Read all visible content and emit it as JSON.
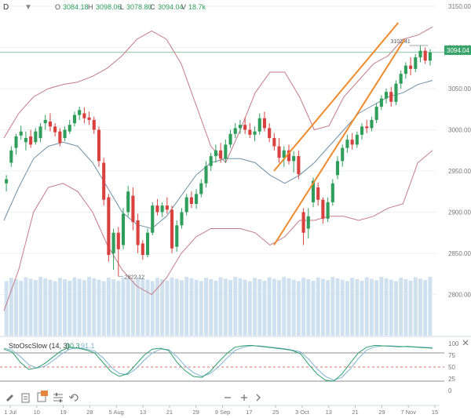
{
  "header": {
    "interval": "D",
    "open_label": "O",
    "open": "3084.18",
    "high_label": "H",
    "high": "3098.06",
    "low_label": "L",
    "low": "3078.80",
    "close_label": "C",
    "close": "3094.04",
    "volume_label": "V",
    "volume": "18.7k"
  },
  "price_axis_ticks": [
    "3150.00",
    "3100.00",
    "3050.00",
    "3000.00",
    "2950.00",
    "2900.00",
    "2850.00",
    "2800.00"
  ],
  "price_tag": "3094.04",
  "high_marker": "3102.41",
  "low_marker": "2822.12",
  "oscillator": {
    "name": "StoOscSlow (14, 3)",
    "k_value": "90.3",
    "d_value": "91.1",
    "ticks": [
      "100",
      "75",
      "50",
      "25",
      "0"
    ],
    "k_color": "#2e9e6e",
    "d_color": "#7fb3d5",
    "upper_level": 80,
    "mid_level": 50,
    "lower_level": 20
  },
  "x_axis_labels": [
    "1 Jul",
    "10",
    "19",
    "28",
    "5 Aug",
    "13",
    "21",
    "29",
    "9 Sep",
    "17",
    "25",
    "3 Oct",
    "13",
    "21",
    "29",
    "7 Nov",
    "15"
  ],
  "colors": {
    "up": "#2f9e5b",
    "down": "#d9413f",
    "bollinger": "#c47a86",
    "moving_average": "#6d8fa8",
    "trendline": "#ef8a2d",
    "volume": "#cfe0ef",
    "price_tag_bg": "#3aa36b"
  },
  "toolbar": {
    "tools": [
      "pencil-icon",
      "clipboard-icon",
      "layers-icon",
      "sliders-icon",
      "undo-icon"
    ],
    "nav": [
      "minus-icon",
      "plus-icon",
      "chevron-right-icon",
      "collapse-icon"
    ]
  },
  "chart_data": {
    "type": "candlestick",
    "ylim": [
      2750,
      3150
    ],
    "x": [
      "1 Jul",
      "10",
      "19",
      "28",
      "5 Aug",
      "13",
      "21",
      "29",
      "9 Sep",
      "17",
      "25",
      "3 Oct",
      "13",
      "21",
      "29",
      "7 Nov",
      "15"
    ],
    "candles": [
      {
        "o": 2935,
        "h": 2945,
        "l": 2925,
        "c": 2940
      },
      {
        "o": 2960,
        "h": 2980,
        "l": 2955,
        "c": 2975
      },
      {
        "o": 2978,
        "h": 2995,
        "l": 2970,
        "c": 2992
      },
      {
        "o": 2993,
        "h": 3005,
        "l": 2988,
        "c": 2998
      },
      {
        "o": 2985,
        "h": 2998,
        "l": 2975,
        "c": 2990
      },
      {
        "o": 2992,
        "h": 3000,
        "l": 2978,
        "c": 2982
      },
      {
        "o": 2985,
        "h": 3002,
        "l": 2982,
        "c": 2998
      },
      {
        "o": 2990,
        "h": 3008,
        "l": 2985,
        "c": 3004
      },
      {
        "o": 3008,
        "h": 3018,
        "l": 3000,
        "c": 3012
      },
      {
        "o": 3010,
        "h": 3020,
        "l": 2998,
        "c": 3004
      },
      {
        "o": 3004,
        "h": 3008,
        "l": 2992,
        "c": 2997
      },
      {
        "o": 2998,
        "h": 3002,
        "l": 2980,
        "c": 2984
      },
      {
        "o": 2990,
        "h": 3004,
        "l": 2986,
        "c": 3000
      },
      {
        "o": 2998,
        "h": 3012,
        "l": 2995,
        "c": 3006
      },
      {
        "o": 3008,
        "h": 3022,
        "l": 3004,
        "c": 3018
      },
      {
        "o": 3018,
        "h": 3028,
        "l": 3012,
        "c": 3024
      },
      {
        "o": 3020,
        "h": 3027,
        "l": 3008,
        "c": 3014
      },
      {
        "o": 3015,
        "h": 3022,
        "l": 3006,
        "c": 3012
      },
      {
        "o": 3012,
        "h": 3016,
        "l": 2995,
        "c": 3000
      },
      {
        "o": 3000,
        "h": 3004,
        "l": 2955,
        "c": 2962
      },
      {
        "o": 2960,
        "h": 2966,
        "l": 2908,
        "c": 2915
      },
      {
        "o": 2918,
        "h": 2922,
        "l": 2840,
        "c": 2848
      },
      {
        "o": 2850,
        "h": 2880,
        "l": 2830,
        "c": 2875
      },
      {
        "o": 2875,
        "h": 2882,
        "l": 2822,
        "c": 2855
      },
      {
        "o": 2860,
        "h": 2905,
        "l": 2855,
        "c": 2898
      },
      {
        "o": 2900,
        "h": 2932,
        "l": 2895,
        "c": 2925
      },
      {
        "o": 2920,
        "h": 2930,
        "l": 2878,
        "c": 2888
      },
      {
        "o": 2890,
        "h": 2898,
        "l": 2850,
        "c": 2860
      },
      {
        "o": 2862,
        "h": 2866,
        "l": 2842,
        "c": 2848
      },
      {
        "o": 2848,
        "h": 2880,
        "l": 2845,
        "c": 2875
      },
      {
        "o": 2875,
        "h": 2912,
        "l": 2872,
        "c": 2908
      },
      {
        "o": 2908,
        "h": 2916,
        "l": 2896,
        "c": 2900
      },
      {
        "o": 2900,
        "h": 2912,
        "l": 2894,
        "c": 2908
      },
      {
        "o": 2908,
        "h": 2918,
        "l": 2898,
        "c": 2903
      },
      {
        "o": 2903,
        "h": 2908,
        "l": 2850,
        "c": 2856
      },
      {
        "o": 2858,
        "h": 2890,
        "l": 2852,
        "c": 2884
      },
      {
        "o": 2884,
        "h": 2905,
        "l": 2880,
        "c": 2900
      },
      {
        "o": 2900,
        "h": 2922,
        "l": 2896,
        "c": 2918
      },
      {
        "o": 2918,
        "h": 2925,
        "l": 2905,
        "c": 2910
      },
      {
        "o": 2910,
        "h": 2928,
        "l": 2904,
        "c": 2922
      },
      {
        "o": 2922,
        "h": 2940,
        "l": 2918,
        "c": 2935
      },
      {
        "o": 2935,
        "h": 2962,
        "l": 2930,
        "c": 2956
      },
      {
        "o": 2956,
        "h": 2972,
        "l": 2950,
        "c": 2968
      },
      {
        "o": 2968,
        "h": 2982,
        "l": 2960,
        "c": 2975
      },
      {
        "o": 2975,
        "h": 2984,
        "l": 2960,
        "c": 2965
      },
      {
        "o": 2965,
        "h": 2988,
        "l": 2960,
        "c": 2982
      },
      {
        "o": 2982,
        "h": 3000,
        "l": 2978,
        "c": 2995
      },
      {
        "o": 2995,
        "h": 3008,
        "l": 2990,
        "c": 3002
      },
      {
        "o": 3002,
        "h": 3012,
        "l": 2995,
        "c": 3006
      },
      {
        "o": 3006,
        "h": 3015,
        "l": 2995,
        "c": 3000
      },
      {
        "o": 3000,
        "h": 3008,
        "l": 2990,
        "c": 2994
      },
      {
        "o": 2994,
        "h": 3004,
        "l": 2986,
        "c": 2998
      },
      {
        "o": 2998,
        "h": 3020,
        "l": 2994,
        "c": 3014
      },
      {
        "o": 3014,
        "h": 3022,
        "l": 2998,
        "c": 3002
      },
      {
        "o": 3002,
        "h": 3008,
        "l": 2985,
        "c": 2990
      },
      {
        "o": 2990,
        "h": 2996,
        "l": 2975,
        "c": 2980
      },
      {
        "o": 2980,
        "h": 2990,
        "l": 2960,
        "c": 2966
      },
      {
        "o": 2966,
        "h": 2980,
        "l": 2955,
        "c": 2975
      },
      {
        "o": 2975,
        "h": 2982,
        "l": 2958,
        "c": 2962
      },
      {
        "o": 2962,
        "h": 2974,
        "l": 2948,
        "c": 2968
      },
      {
        "o": 2968,
        "h": 2975,
        "l": 2940,
        "c": 2946
      },
      {
        "o": 2900,
        "h": 2905,
        "l": 2860,
        "c": 2875
      },
      {
        "o": 2880,
        "h": 2905,
        "l": 2868,
        "c": 2895
      },
      {
        "o": 2912,
        "h": 2942,
        "l": 2906,
        "c": 2938
      },
      {
        "o": 2930,
        "h": 2936,
        "l": 2908,
        "c": 2915
      },
      {
        "o": 2915,
        "h": 2918,
        "l": 2886,
        "c": 2892
      },
      {
        "o": 2892,
        "h": 2918,
        "l": 2888,
        "c": 2912
      },
      {
        "o": 2912,
        "h": 2940,
        "l": 2908,
        "c": 2935
      },
      {
        "o": 2945,
        "h": 2968,
        "l": 2940,
        "c": 2962
      },
      {
        "o": 2962,
        "h": 2982,
        "l": 2955,
        "c": 2978
      },
      {
        "o": 2978,
        "h": 2994,
        "l": 2972,
        "c": 2988
      },
      {
        "o": 2988,
        "h": 2996,
        "l": 2976,
        "c": 2982
      },
      {
        "o": 2982,
        "h": 2998,
        "l": 2978,
        "c": 2994
      },
      {
        "o": 2994,
        "h": 3008,
        "l": 2988,
        "c": 3004
      },
      {
        "o": 3004,
        "h": 3012,
        "l": 2996,
        "c": 3002
      },
      {
        "o": 3002,
        "h": 3016,
        "l": 2998,
        "c": 3012
      },
      {
        "o": 3012,
        "h": 3032,
        "l": 3008,
        "c": 3028
      },
      {
        "o": 3028,
        "h": 3042,
        "l": 3024,
        "c": 3038
      },
      {
        "o": 3038,
        "h": 3050,
        "l": 3032,
        "c": 3046
      },
      {
        "o": 3046,
        "h": 3052,
        "l": 3028,
        "c": 3034
      },
      {
        "o": 3034,
        "h": 3060,
        "l": 3030,
        "c": 3056
      },
      {
        "o": 3056,
        "h": 3072,
        "l": 3050,
        "c": 3068
      },
      {
        "o": 3068,
        "h": 3082,
        "l": 3062,
        "c": 3078
      },
      {
        "o": 3078,
        "h": 3088,
        "l": 3066,
        "c": 3074
      },
      {
        "o": 3074,
        "h": 3092,
        "l": 3070,
        "c": 3088
      },
      {
        "o": 3088,
        "h": 3102,
        "l": 3082,
        "c": 3096
      },
      {
        "o": 3096,
        "h": 3100,
        "l": 3080,
        "c": 3084
      },
      {
        "o": 3084,
        "h": 3098,
        "l": 3078,
        "c": 3094
      }
    ],
    "volume_range": [
      2780,
      2825
    ],
    "bollinger_upper": [
      2990,
      3020,
      3040,
      3050,
      3055,
      3058,
      3065,
      3075,
      3090,
      3110,
      3120,
      3110,
      3080,
      3030,
      2980,
      2960,
      3000,
      3045,
      3070,
      3070,
      3040,
      3000,
      3005,
      3040,
      3060,
      3080,
      3090,
      3110,
      3115,
      3125
    ],
    "bollinger_lower": [
      2780,
      2830,
      2900,
      2930,
      2935,
      2925,
      2900,
      2860,
      2830,
      2810,
      2800,
      2820,
      2850,
      2870,
      2880,
      2880,
      2880,
      2875,
      2860,
      2870,
      2890,
      2890,
      2895,
      2895,
      2890,
      2895,
      2905,
      2910,
      2960,
      2975
    ],
    "moving_average": [
      2890,
      2930,
      2965,
      2980,
      2985,
      2980,
      2960,
      2930,
      2900,
      2885,
      2880,
      2895,
      2920,
      2945,
      2960,
      2965,
      2965,
      2960,
      2945,
      2935,
      2945,
      2960,
      2980,
      3000,
      3020,
      3030,
      3040,
      3045,
      3055,
      3060
    ],
    "trend_upper": [
      [
        0.63,
        2950
      ],
      [
        0.92,
        3130
      ]
    ],
    "trend_lower": [
      [
        0.63,
        2860
      ],
      [
        0.935,
        3110
      ]
    ],
    "osc_k": [
      88,
      82,
      60,
      45,
      48,
      58,
      72,
      85,
      92,
      90,
      86,
      80,
      60,
      40,
      30,
      36,
      55,
      75,
      88,
      90,
      85,
      60,
      42,
      30,
      28,
      40,
      60,
      78,
      92,
      95,
      96,
      94,
      92,
      90,
      88,
      85,
      78,
      55,
      35,
      22,
      20,
      35,
      58,
      80,
      92,
      96,
      95,
      94,
      93,
      94,
      92,
      91,
      90
    ],
    "osc_d": [
      90,
      86,
      72,
      55,
      48,
      52,
      64,
      78,
      88,
      91,
      88,
      84,
      70,
      50,
      36,
      34,
      46,
      64,
      80,
      88,
      87,
      72,
      52,
      38,
      30,
      36,
      50,
      68,
      85,
      92,
      95,
      95,
      93,
      91,
      89,
      86,
      82,
      66,
      46,
      30,
      22,
      28,
      46,
      68,
      86,
      93,
      95,
      95,
      94,
      93,
      93,
      92,
      91
    ]
  }
}
